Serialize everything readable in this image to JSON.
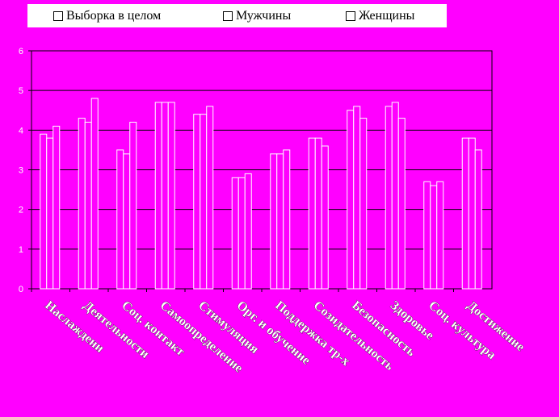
{
  "chart_data": {
    "type": "bar",
    "categories": [
      "Наслаждени",
      "Деятельности",
      "Соц. контакт",
      "Самоопределение",
      "Стимуляция",
      "Орг. и обучение",
      "Поддержка тр-х",
      "Созидательность",
      "Безопасность",
      "Здоровье",
      "Соц. культура",
      "Достижение"
    ],
    "series": [
      {
        "name": "Выборка в целом",
        "values": [
          3.9,
          4.3,
          3.5,
          4.7,
          4.4,
          2.8,
          3.4,
          3.8,
          4.5,
          4.6,
          2.7,
          3.8
        ]
      },
      {
        "name": "Мужчины",
        "values": [
          3.8,
          4.2,
          3.4,
          4.7,
          4.4,
          2.8,
          3.4,
          3.8,
          4.6,
          4.7,
          2.6,
          3.8
        ]
      },
      {
        "name": "Женщины",
        "values": [
          4.1,
          4.8,
          4.2,
          4.7,
          4.6,
          2.9,
          3.5,
          3.6,
          4.3,
          4.3,
          2.7,
          3.5
        ]
      }
    ],
    "ylim": [
      0,
      6
    ],
    "yticks": [
      0,
      1,
      2,
      3,
      4,
      5,
      6
    ],
    "grid": true,
    "legend": "top",
    "colors": {
      "background": "#ff00ff",
      "bar_fill": "#ff00ff",
      "bar_stroke": "#ffffff",
      "grid": "#000000"
    }
  }
}
